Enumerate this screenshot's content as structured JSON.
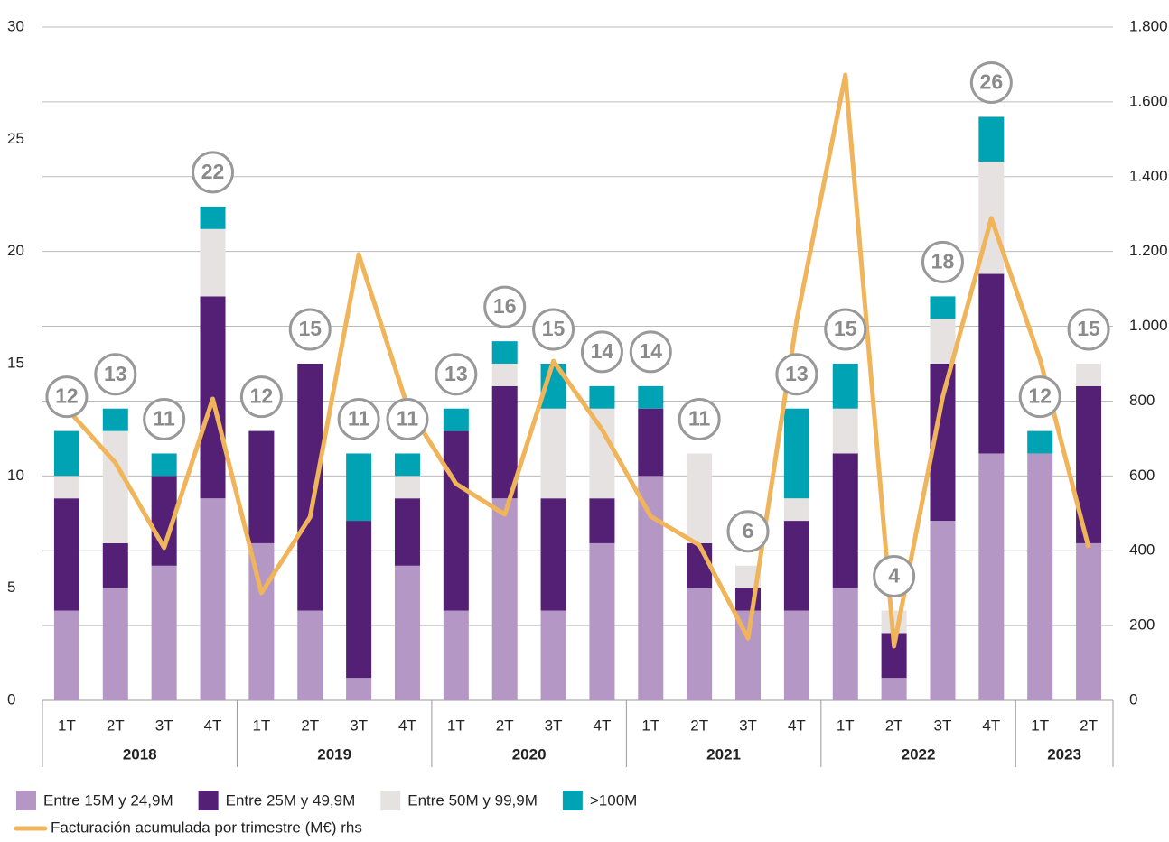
{
  "chart_data": {
    "type": "stacked-bar-line",
    "groups": [
      {
        "name": "2018",
        "categories": [
          "1T",
          "2T",
          "3T",
          "4T"
        ]
      },
      {
        "name": "2019",
        "categories": [
          "1T",
          "2T",
          "3T",
          "4T"
        ]
      },
      {
        "name": "2020",
        "categories": [
          "1T",
          "2T",
          "3T",
          "4T"
        ]
      },
      {
        "name": "2021",
        "categories": [
          "1T",
          "2T",
          "3T",
          "4T"
        ]
      },
      {
        "name": "2022",
        "categories": [
          "1T",
          "2T",
          "3T",
          "4T"
        ]
      },
      {
        "name": "2023",
        "categories": [
          "1T",
          "2T"
        ]
      }
    ],
    "series": [
      {
        "name": "Entre 15M y 24,9M",
        "color": "#b497c4",
        "values": [
          4,
          5,
          6,
          9,
          7,
          4,
          1,
          6,
          4,
          9,
          4,
          7,
          10,
          5,
          4,
          4,
          5,
          1,
          8,
          11,
          11,
          7
        ]
      },
      {
        "name": "Entre 25M y 49,9M",
        "color": "#542075",
        "values": [
          5,
          2,
          4,
          9,
          5,
          11,
          7,
          3,
          8,
          5,
          5,
          2,
          3,
          2,
          1,
          4,
          6,
          2,
          7,
          8,
          0,
          7
        ]
      },
      {
        "name": "Entre 50M y 99,9M",
        "color": "#e6e2e2",
        "values": [
          1,
          5,
          0,
          3,
          0,
          0,
          0,
          1,
          0,
          1,
          4,
          4,
          0,
          4,
          1,
          1,
          2,
          1,
          2,
          5,
          0,
          1
        ]
      },
      {
        "name": ">100M",
        "color": "#00a3b4",
        "values": [
          2,
          1,
          1,
          1,
          0,
          0,
          3,
          1,
          1,
          1,
          2,
          1,
          1,
          0,
          0,
          4,
          2,
          0,
          1,
          2,
          1,
          0
        ]
      },
      {
        "name": "Facturación acumulada por trimestre (M€) rhs",
        "color": "#f0b45a",
        "type": "line",
        "axis": "y2",
        "values": [
          780,
          635,
          408,
          806,
          287,
          490,
          1192,
          786,
          579,
          497,
          907,
          724,
          492,
          415,
          166,
          1016,
          1672,
          145,
          811,
          1289,
          912,
          408
        ]
      }
    ],
    "totals": [
      12,
      13,
      11,
      22,
      12,
      15,
      11,
      11,
      13,
      16,
      15,
      14,
      14,
      11,
      6,
      13,
      15,
      4,
      18,
      26,
      12,
      15
    ],
    "ylim": [
      0,
      30
    ],
    "yticks": [
      0,
      5,
      10,
      15,
      20,
      25,
      30
    ],
    "y2lim": [
      0,
      1800
    ],
    "y2ticks": [
      0,
      200,
      400,
      600,
      800,
      {
        "value": 1000,
        "label": "1.000"
      },
      {
        "value": 1200,
        "label": "1.200"
      },
      {
        "value": 1400,
        "label": "1.400"
      },
      {
        "value": 1600,
        "label": "1.600"
      },
      {
        "value": 1800,
        "label": "1.800"
      }
    ],
    "grid": "y2"
  }
}
